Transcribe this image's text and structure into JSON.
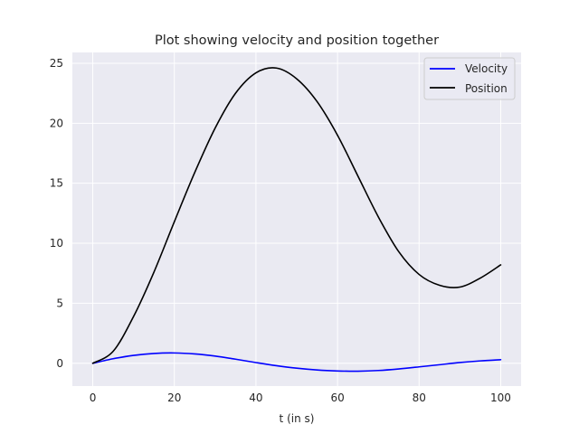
{
  "chart_data": {
    "type": "line",
    "title": "Plot showing velocity and position together",
    "xlabel": "t (in s)",
    "ylabel": "",
    "xlim": [
      -5,
      105
    ],
    "ylim": [
      -1.9,
      25.9
    ],
    "xticks": [
      0,
      20,
      40,
      60,
      80,
      100
    ],
    "yticks": [
      0,
      5,
      10,
      15,
      20,
      25
    ],
    "grid": true,
    "legend_position": "top-right",
    "colors": {
      "background": "#eaeaf2",
      "grid": "#ffffff"
    },
    "series": [
      {
        "name": "Velocity",
        "color": "#0000ff",
        "x": [
          0,
          5,
          10,
          15,
          20,
          25,
          30,
          35,
          40,
          45,
          50,
          55,
          60,
          65,
          70,
          75,
          80,
          85,
          90,
          95,
          100
        ],
        "y": [
          0,
          0.38,
          0.66,
          0.82,
          0.86,
          0.78,
          0.6,
          0.34,
          0.06,
          -0.2,
          -0.41,
          -0.56,
          -0.64,
          -0.66,
          -0.6,
          -0.47,
          -0.3,
          -0.12,
          0.06,
          0.2,
          0.3
        ]
      },
      {
        "name": "Position",
        "color": "#000000",
        "x": [
          0,
          5,
          10,
          15,
          20,
          25,
          30,
          35,
          40,
          45,
          50,
          55,
          60,
          65,
          70,
          75,
          80,
          85,
          90,
          95,
          100
        ],
        "y": [
          0,
          1.0,
          3.9,
          7.6,
          11.8,
          15.9,
          19.6,
          22.5,
          24.2,
          24.6,
          23.7,
          21.8,
          19.0,
          15.6,
          12.2,
          9.3,
          7.4,
          6.5,
          6.35,
          7.1,
          8.2
        ]
      }
    ]
  }
}
